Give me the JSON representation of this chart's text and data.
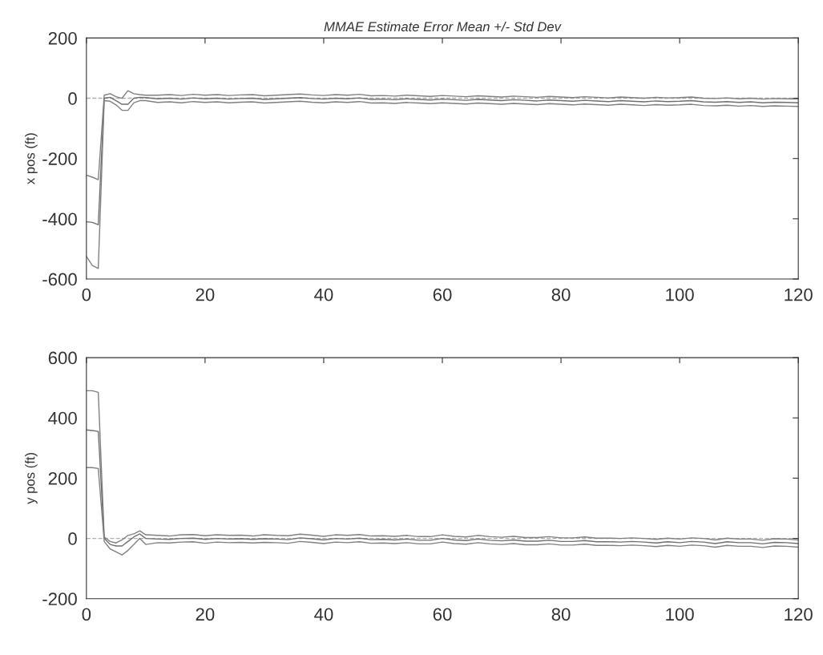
{
  "chart_data": [
    {
      "type": "line",
      "title": "MMAE Estimate Error Mean +/- Std Dev",
      "ylabel": "x pos (ft)",
      "x": [
        0,
        1,
        2,
        3,
        4,
        5,
        6,
        7,
        8,
        9,
        10,
        12,
        14,
        16,
        18,
        20,
        22,
        24,
        26,
        28,
        30,
        32,
        34,
        36,
        38,
        40,
        42,
        44,
        46,
        48,
        50,
        52,
        54,
        56,
        58,
        60,
        62,
        64,
        66,
        68,
        70,
        72,
        74,
        76,
        78,
        80,
        82,
        84,
        86,
        88,
        90,
        92,
        94,
        96,
        98,
        100,
        102,
        104,
        106,
        108,
        110,
        112,
        114,
        116,
        118,
        120
      ],
      "series": [
        {
          "color": "#808080",
          "values": [
            -255,
            -262,
            -270,
            10,
            15,
            5,
            0,
            25,
            15,
            12,
            10,
            10,
            12,
            9,
            13,
            10,
            12,
            9,
            11,
            12,
            8,
            10,
            12,
            14,
            11,
            9,
            12,
            10,
            13,
            8,
            9,
            7,
            10,
            8,
            6,
            9,
            7,
            5,
            8,
            6,
            4,
            7,
            5,
            3,
            6,
            4,
            2,
            5,
            3,
            1,
            4,
            2,
            0,
            3,
            1,
            2,
            4,
            0,
            -1,
            1,
            -2,
            0,
            -3,
            -1,
            -2,
            -3
          ]
        },
        {
          "color": "#707070",
          "values": [
            -410,
            -412,
            -420,
            0,
            3,
            -8,
            -20,
            -20,
            0,
            3,
            2,
            -2,
            0,
            -3,
            1,
            -2,
            0,
            -3,
            -1,
            0,
            -4,
            -2,
            0,
            2,
            -1,
            -3,
            0,
            -2,
            1,
            -4,
            -3,
            -5,
            -2,
            -4,
            -6,
            -3,
            -5,
            -7,
            -4,
            -6,
            -8,
            -5,
            -7,
            -9,
            -6,
            -8,
            -10,
            -7,
            -9,
            -11,
            -8,
            -10,
            -12,
            -9,
            -11,
            -10,
            -8,
            -12,
            -13,
            -11,
            -14,
            -12,
            -15,
            -13,
            -14,
            -15
          ]
        },
        {
          "color": "#808080",
          "values": [
            -525,
            -555,
            -565,
            -8,
            -10,
            -22,
            -40,
            -40,
            -15,
            -8,
            -8,
            -14,
            -12,
            -15,
            -11,
            -14,
            -12,
            -15,
            -13,
            -12,
            -16,
            -14,
            -12,
            -10,
            -13,
            -15,
            -12,
            -14,
            -11,
            -16,
            -15,
            -17,
            -14,
            -16,
            -18,
            -15,
            -17,
            -19,
            -16,
            -18,
            -20,
            -17,
            -19,
            -21,
            -18,
            -20,
            -22,
            -19,
            -21,
            -23,
            -20,
            -22,
            -24,
            -21,
            -23,
            -22,
            -20,
            -24,
            -25,
            -23,
            -26,
            -24,
            -27,
            -25,
            -26,
            -27
          ]
        }
      ],
      "ref_lines": [
        {
          "axis": "y",
          "value": 0,
          "color": "#b0b0b0",
          "line_style": "dashed"
        }
      ],
      "xlim": [
        0,
        120
      ],
      "xticks": [
        0,
        20,
        40,
        60,
        80,
        100,
        120
      ],
      "ylim": [
        -600,
        200
      ],
      "yticks": [
        -600,
        -400,
        -200,
        0,
        200
      ],
      "grid": false
    },
    {
      "type": "line",
      "ylabel": "y pos (ft)",
      "x": [
        0,
        1,
        2,
        3,
        4,
        5,
        6,
        7,
        8,
        9,
        10,
        12,
        14,
        16,
        18,
        20,
        22,
        24,
        26,
        28,
        30,
        32,
        34,
        36,
        38,
        40,
        42,
        44,
        46,
        48,
        50,
        52,
        54,
        56,
        58,
        60,
        62,
        64,
        66,
        68,
        70,
        72,
        74,
        76,
        78,
        80,
        82,
        84,
        86,
        88,
        90,
        92,
        94,
        96,
        98,
        100,
        102,
        104,
        106,
        108,
        110,
        112,
        114,
        116,
        118,
        120
      ],
      "series": [
        {
          "color": "#808080",
          "values": [
            490,
            490,
            485,
            5,
            -10,
            -15,
            -5,
            10,
            15,
            25,
            12,
            10,
            8,
            12,
            13,
            9,
            12,
            10,
            11,
            8,
            12,
            10,
            9,
            14,
            11,
            7,
            12,
            10,
            13,
            8,
            9,
            7,
            10,
            6,
            6,
            12,
            7,
            5,
            10,
            6,
            4,
            7,
            3,
            3,
            6,
            2,
            2,
            5,
            1,
            1,
            0,
            2,
            0,
            -3,
            1,
            -2,
            2,
            0,
            -5,
            1,
            -2,
            -2,
            -6,
            -1,
            -2,
            -5
          ]
        },
        {
          "color": "#707070",
          "values": [
            360,
            358,
            355,
            0,
            -20,
            -25,
            -25,
            -10,
            5,
            15,
            0,
            -2,
            -3,
            0,
            1,
            -3,
            0,
            -2,
            -1,
            -3,
            -1,
            -2,
            -4,
            2,
            -1,
            -5,
            0,
            -2,
            1,
            -4,
            -3,
            -5,
            -2,
            -6,
            -6,
            0,
            -5,
            -7,
            -2,
            -6,
            -8,
            -5,
            -9,
            -9,
            -6,
            -10,
            -10,
            -7,
            -11,
            -11,
            -12,
            -10,
            -12,
            -15,
            -11,
            -14,
            -10,
            -12,
            -17,
            -11,
            -14,
            -14,
            -18,
            -13,
            -14,
            -17
          ]
        },
        {
          "color": "#808080",
          "values": [
            235,
            235,
            232,
            -10,
            -35,
            -45,
            -55,
            -40,
            -20,
            0,
            -20,
            -14,
            -15,
            -12,
            -11,
            -16,
            -12,
            -14,
            -13,
            -15,
            -13,
            -14,
            -16,
            -10,
            -13,
            -17,
            -12,
            -14,
            -11,
            -16,
            -15,
            -17,
            -14,
            -18,
            -18,
            -12,
            -17,
            -19,
            -14,
            -18,
            -20,
            -17,
            -21,
            -21,
            -18,
            -22,
            -22,
            -19,
            -23,
            -23,
            -24,
            -22,
            -24,
            -27,
            -23,
            -26,
            -22,
            -24,
            -29,
            -23,
            -26,
            -26,
            -30,
            -25,
            -26,
            -29
          ]
        }
      ],
      "ref_lines": [
        {
          "axis": "y",
          "value": 0,
          "color": "#b0b0b0",
          "line_style": "dashed"
        }
      ],
      "xlim": [
        0,
        120
      ],
      "xticks": [
        0,
        20,
        40,
        60,
        80,
        100,
        120
      ],
      "ylim": [
        -200,
        600
      ],
      "yticks": [
        -200,
        0,
        200,
        400,
        600
      ],
      "grid": false
    }
  ]
}
